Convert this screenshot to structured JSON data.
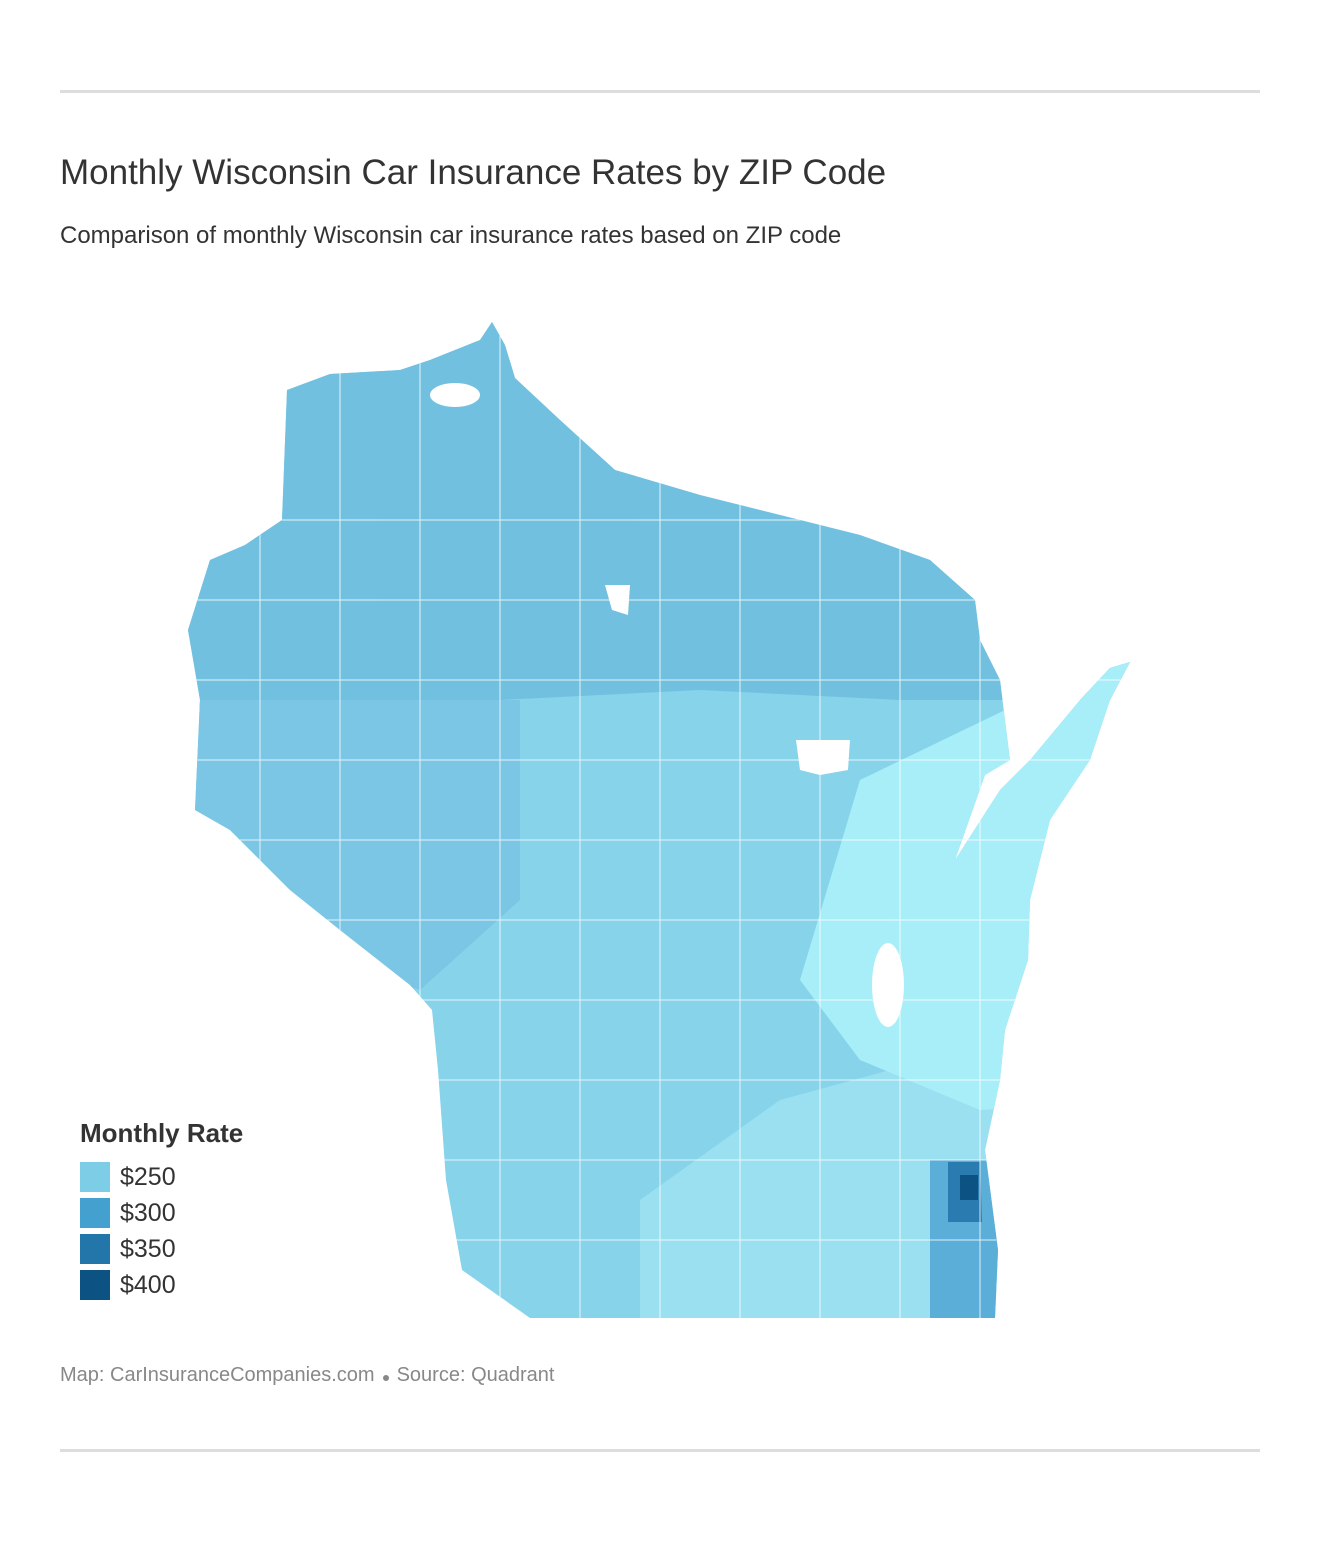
{
  "header": {
    "title": "Monthly Wisconsin Car Insurance Rates by ZIP Code",
    "subtitle": "Comparison of monthly Wisconsin car insurance rates based on ZIP code"
  },
  "legend": {
    "title": "Monthly Rate",
    "items": [
      {
        "label": "$250",
        "color": "#7ecde6"
      },
      {
        "label": "$300",
        "color": "#43a0cf"
      },
      {
        "label": "$350",
        "color": "#2276aa"
      },
      {
        "label": "$400",
        "color": "#0c5283"
      }
    ]
  },
  "footer": {
    "credits": [
      "Map: CarInsuranceCompanies.com",
      "Source: Quadrant"
    ]
  }
}
